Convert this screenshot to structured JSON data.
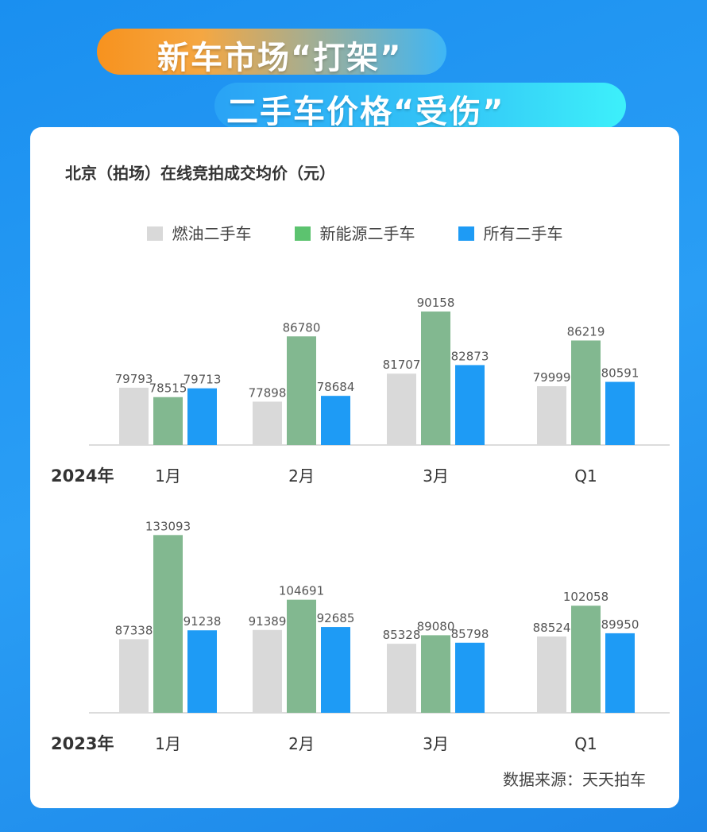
{
  "headline": {
    "line1": "新车市场“打架”",
    "line2": "二手车价格“受伤”"
  },
  "colors": {
    "fuel": "#d9d9d9",
    "nev": "#82b890",
    "all": "#1e9bf5"
  },
  "chart_data": {
    "type": "bar",
    "title": "北京（拍场）在线竞拍成交均价（元）",
    "legend": [
      "燃油二手车",
      "新能源二手车",
      "所有二手车"
    ],
    "legend_placement": "top",
    "grid": false,
    "source": "数据来源：天天拍车",
    "panels": [
      {
        "year_label": "2024年",
        "categories": [
          "1月",
          "2月",
          "3月",
          "Q1"
        ],
        "ylim": [
          72000,
          92000
        ],
        "series": [
          {
            "name": "燃油二手车",
            "values": [
              79793,
              77898,
              81707,
              79999
            ]
          },
          {
            "name": "新能源二手车",
            "values": [
              78515,
              86780,
              90158,
              86219
            ]
          },
          {
            "name": "所有二手车",
            "values": [
              79713,
              78684,
              82873,
              80591
            ]
          }
        ]
      },
      {
        "year_label": "2023年",
        "categories": [
          "1月",
          "2月",
          "3月",
          "Q1"
        ],
        "ylim": [
          55000,
          136000
        ],
        "series": [
          {
            "name": "燃油二手车",
            "values": [
              87338,
              91389,
              85328,
              88524
            ]
          },
          {
            "name": "新能源二手车",
            "values": [
              133093,
              104691,
              89080,
              102058
            ]
          },
          {
            "name": "所有二手车",
            "values": [
              91238,
              92685,
              85798,
              89950
            ]
          }
        ]
      }
    ]
  }
}
